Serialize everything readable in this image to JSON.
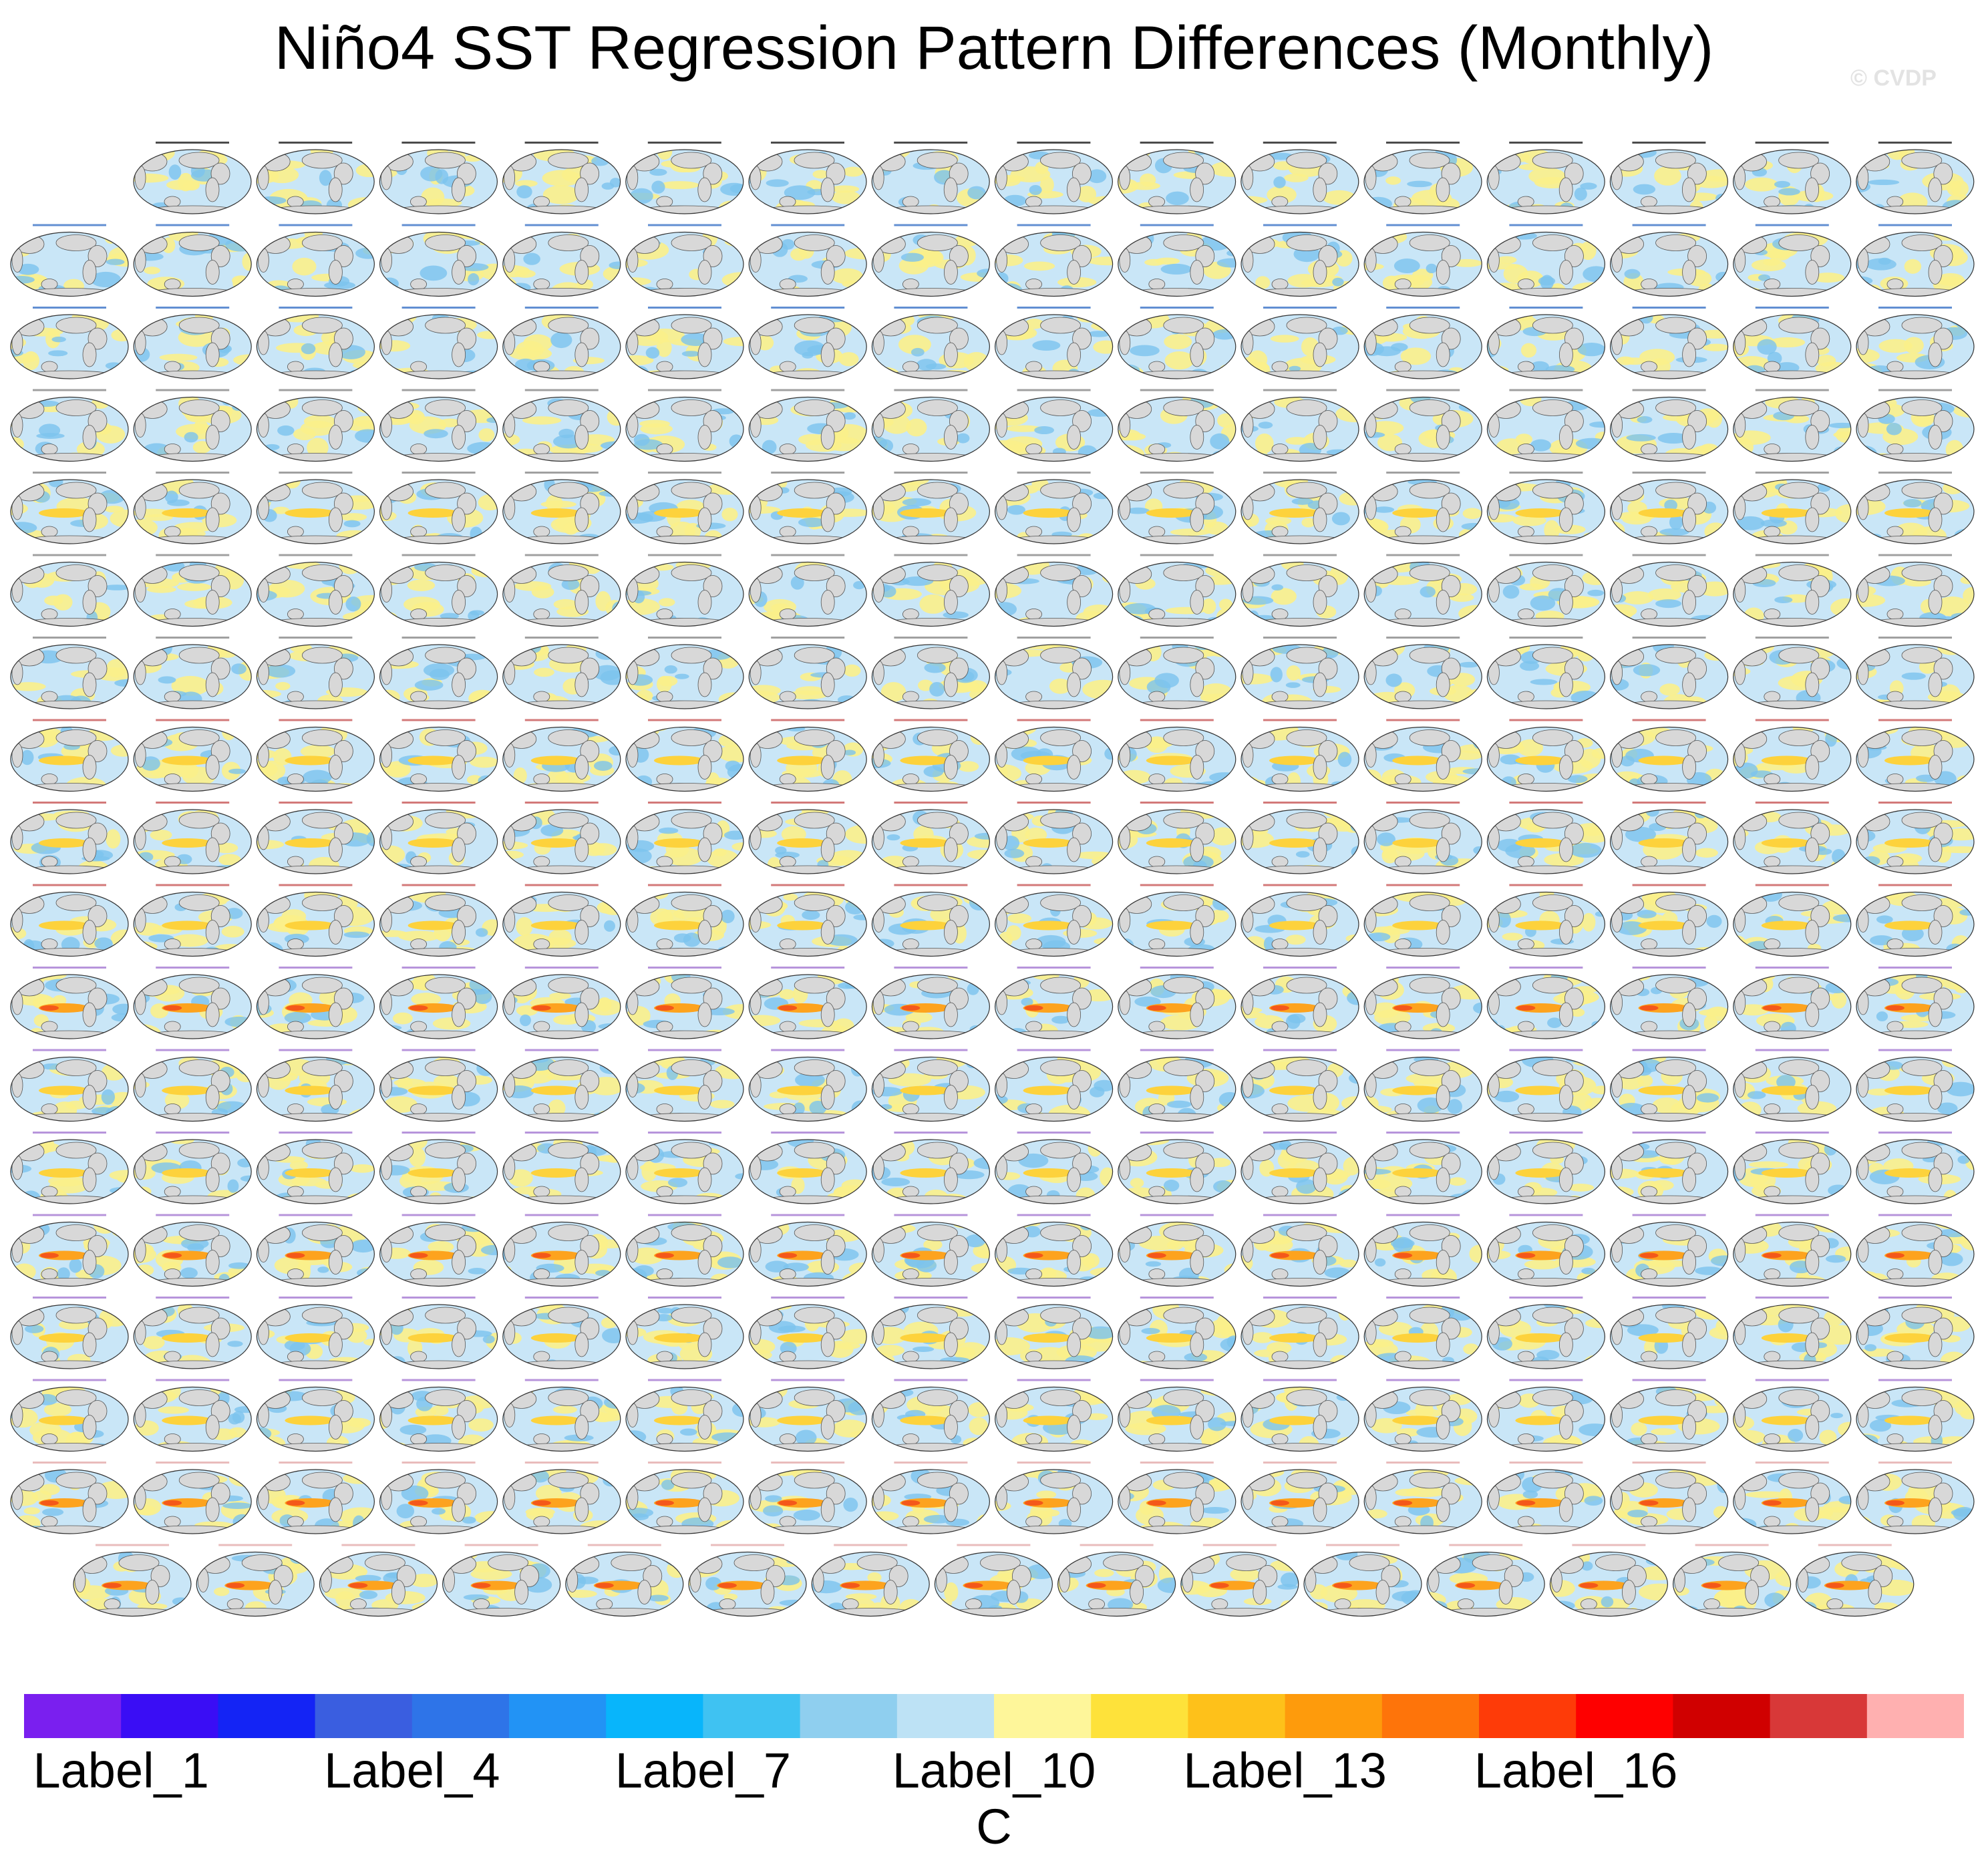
{
  "title": "Niño4 SST Regression Pattern Differences (Monthly)",
  "watermark": "© CVDP",
  "chart_data": {
    "type": "heatmap",
    "title": "Niño4 SST Regression Pattern Differences (Monthly)",
    "description_rows": [
      15,
      16,
      16,
      16,
      16,
      16,
      16,
      16,
      16,
      16,
      16,
      16,
      16,
      16,
      16,
      16,
      16,
      15
    ],
    "row_panel_counts": [
      15,
      16,
      16,
      16,
      16,
      16,
      16,
      16,
      16,
      16,
      16,
      16,
      16,
      16,
      16,
      16,
      16,
      15
    ],
    "panel_title_colors": [
      "#000000",
      "#1f5fbf",
      "#1f5fbf",
      "#777777",
      "#777777",
      "#777777",
      "#777777",
      "#c04040",
      "#c04040",
      "#c04040",
      "#9966cc",
      "#9966cc",
      "#9966cc",
      "#9966cc",
      "#9966cc",
      "#9966cc",
      "#e0a0a0",
      "#e0a0a0"
    ],
    "panel_warmth": [
      1,
      1,
      1,
      1,
      2,
      1,
      1,
      2,
      2,
      2,
      3,
      2,
      2,
      3,
      2,
      2,
      3,
      3
    ],
    "colorbar": {
      "colors": [
        "#7a1fef",
        "#3a0df5",
        "#1424f5",
        "#3a5ee0",
        "#2e74e8",
        "#2293f5",
        "#08b5fb",
        "#3fc2f2",
        "#8fcfef",
        "#bde2f5",
        "#fef69a",
        "#fee23a",
        "#fec11a",
        "#fe9b0c",
        "#fe740a",
        "#fe3b08",
        "#fe0000",
        "#d00000",
        "#d83838",
        "#ffb0b0"
      ],
      "tick_labels": [
        "Label_1",
        "Label_4",
        "Label_7",
        "Label_10",
        "Label_13",
        "Label_16"
      ],
      "tick_positions": [
        1,
        4,
        7,
        10,
        13,
        16
      ],
      "units": "C"
    }
  }
}
